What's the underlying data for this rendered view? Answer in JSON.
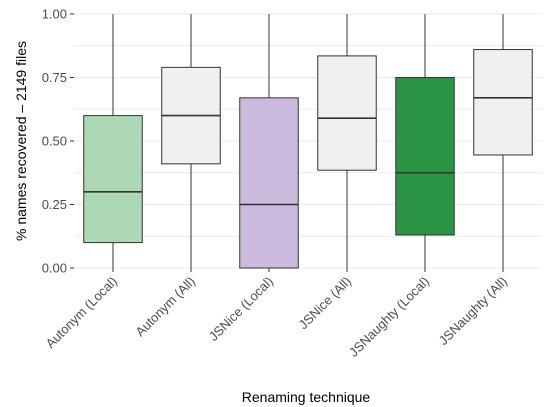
{
  "chart_data": {
    "type": "box",
    "xlabel": "Renaming technique",
    "ylabel": "% names recovered – 2149 files",
    "ylim": [
      0,
      1
    ],
    "y_ticks": [
      "0.00",
      "0.25",
      "0.50",
      "0.75",
      "1.00"
    ],
    "y_tick_values": [
      0,
      0.25,
      0.5,
      0.75,
      1.0
    ],
    "grid": true,
    "categories": [
      "Autonym (Local)",
      "Autonym (All)",
      "JSNice (Local)",
      "JSNice (All)",
      "JSNaughty (Local)",
      "JSNaughty (All)"
    ],
    "boxes": [
      {
        "category": "Autonym (Local)",
        "min": 0.0,
        "q1": 0.1,
        "median": 0.3,
        "q3": 0.6,
        "max": 1.0,
        "color": "#add8b4"
      },
      {
        "category": "Autonym (All)",
        "min": 0.0,
        "q1": 0.41,
        "median": 0.6,
        "q3": 0.79,
        "max": 1.0,
        "color": "#f0f0f0"
      },
      {
        "category": "JSNice (Local)",
        "min": 0.0,
        "q1": 0.0,
        "median": 0.25,
        "q3": 0.67,
        "max": 1.0,
        "color": "#cbbadd"
      },
      {
        "category": "JSNice (All)",
        "min": 0.0,
        "q1": 0.385,
        "median": 0.59,
        "q3": 0.835,
        "max": 1.0,
        "color": "#f0f0f0"
      },
      {
        "category": "JSNaughty (Local)",
        "min": 0.0,
        "q1": 0.13,
        "median": 0.375,
        "q3": 0.75,
        "max": 1.0,
        "color": "#2a9444"
      },
      {
        "category": "JSNaughty (All)",
        "min": 0.0,
        "q1": 0.445,
        "median": 0.67,
        "q3": 0.86,
        "max": 1.0,
        "color": "#f0f0f0"
      }
    ]
  }
}
